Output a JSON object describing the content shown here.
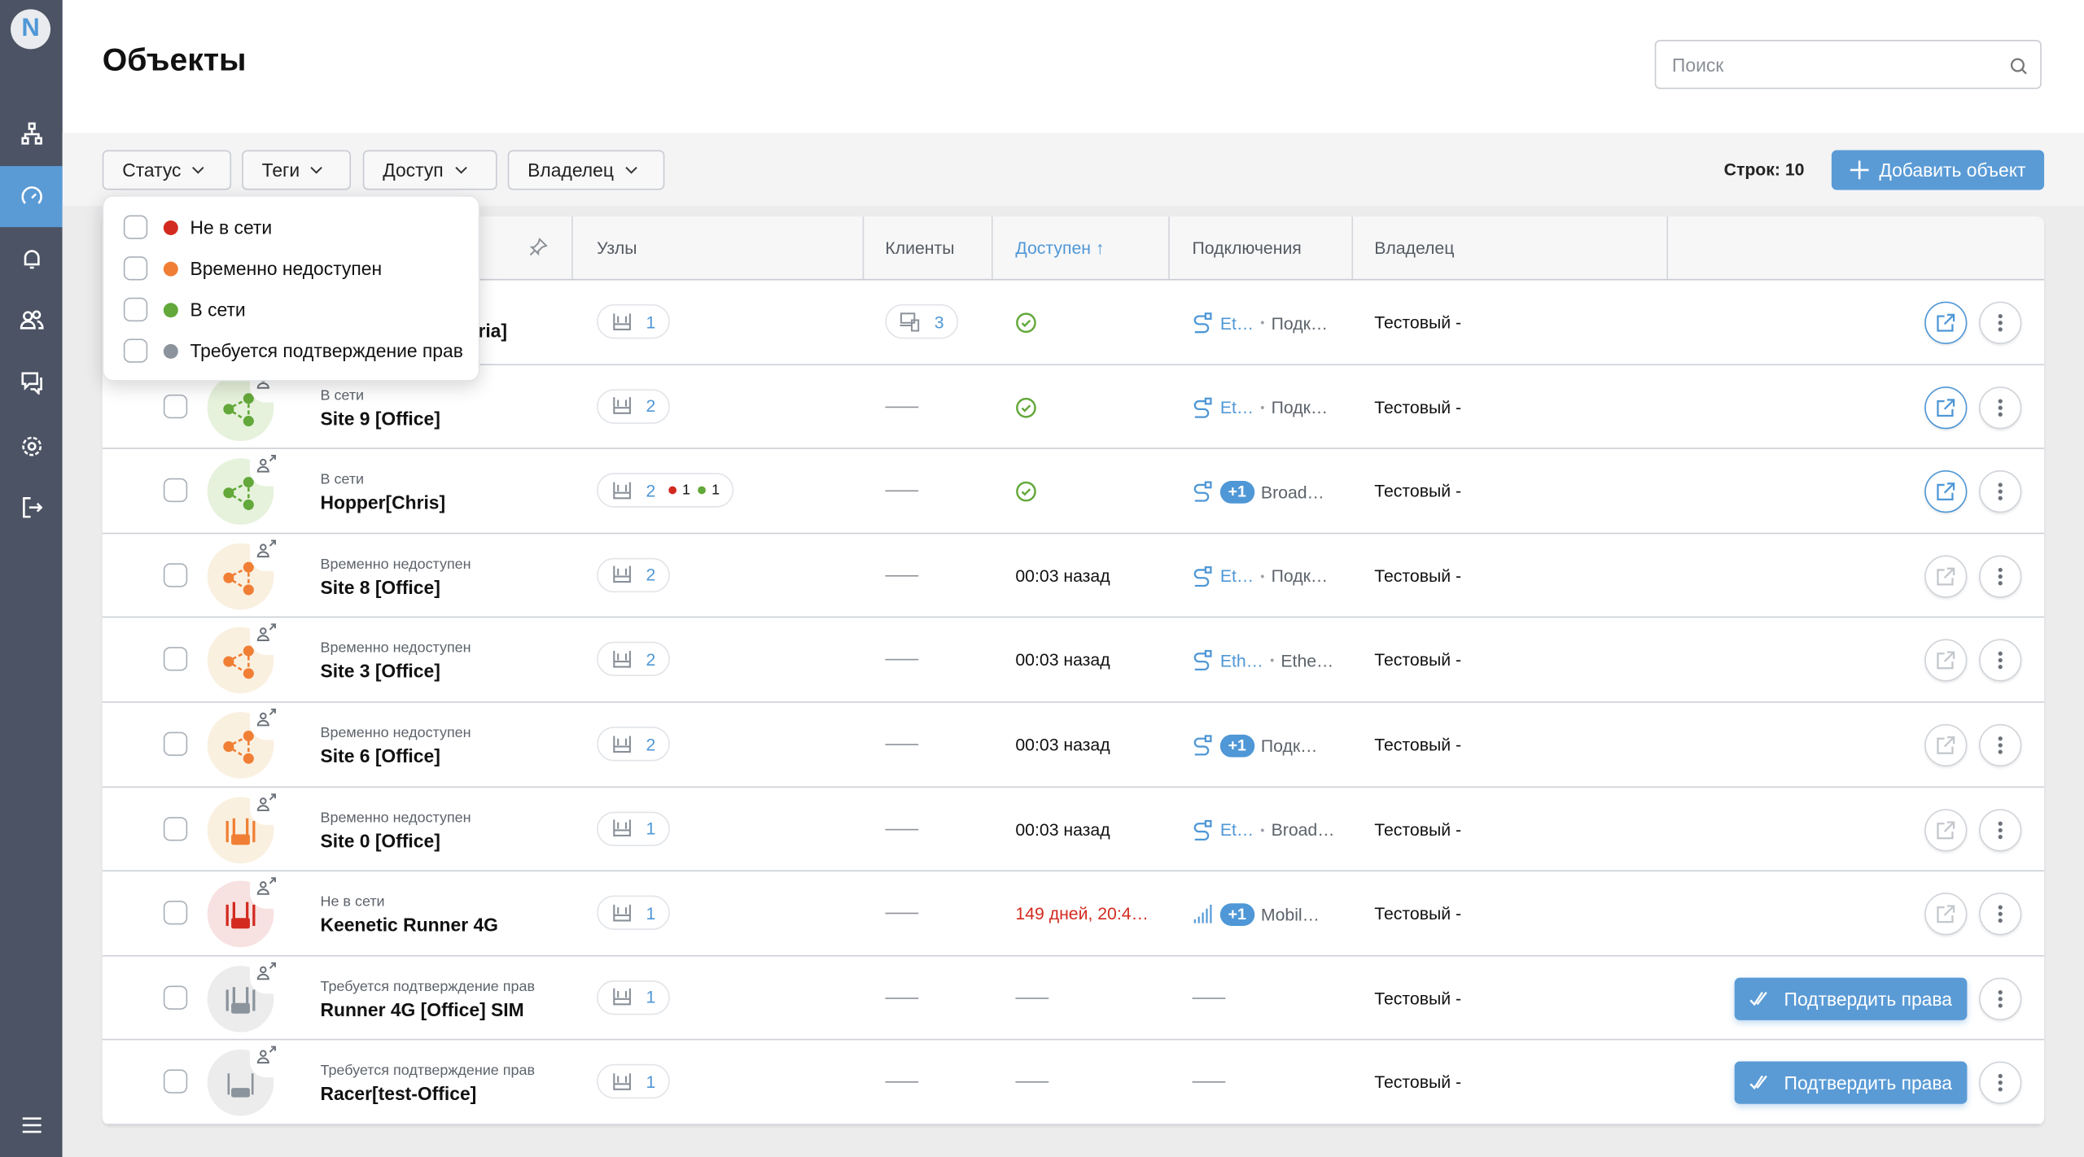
{
  "app": {
    "logo": "N",
    "title": "Объекты"
  },
  "sidebar": {
    "items": [
      {
        "icon": "network-topology-icon",
        "active": false
      },
      {
        "icon": "dashboard-gauge-icon",
        "active": true
      },
      {
        "icon": "bell-icon",
        "active": false
      },
      {
        "icon": "users-icon",
        "active": false
      },
      {
        "icon": "chat-icon",
        "active": false
      },
      {
        "icon": "gear-icon",
        "active": false
      },
      {
        "icon": "logout-icon",
        "active": false
      }
    ],
    "menu_icon": "hamburger-icon"
  },
  "search": {
    "placeholder": "Поиск",
    "value": ""
  },
  "filters": [
    {
      "label": "Статус"
    },
    {
      "label": "Теги"
    },
    {
      "label": "Доступ"
    },
    {
      "label": "Владелец"
    }
  ],
  "rows_count": "Строк: 10",
  "add_button": "Добавить объект",
  "status_dropdown": {
    "options": [
      {
        "label": "Не в сети",
        "color": "#d32a1f",
        "checked": false
      },
      {
        "label": "Временно недоступен",
        "color": "#f07f35",
        "checked": false
      },
      {
        "label": "В сети",
        "color": "#63a83a",
        "checked": false
      },
      {
        "label": "Требуется подтверждение прав",
        "color": "#8b939c",
        "checked": false
      }
    ]
  },
  "table": {
    "columns": {
      "nodes": "Узлы",
      "clients": "Клиенты",
      "available": "Доступен",
      "available_sort": "↑",
      "connections": "Подключения",
      "owner": "Владелец"
    },
    "rows": [
      {
        "status": "",
        "name": "aria]",
        "kind": "network",
        "color": "online",
        "nodes": "1",
        "clients": "3",
        "available_icon": "check",
        "available": "",
        "conn_icon": "ethernet",
        "conn1": "Et…",
        "plus": "",
        "conn2": "Подк…",
        "owner": "Тестовый -",
        "action": "open-active"
      },
      {
        "status": "В сети",
        "name": "Site 9 [Office]",
        "kind": "network",
        "color": "online",
        "nodes": "2",
        "clients": "",
        "available_icon": "check",
        "available": "",
        "conn_icon": "ethernet",
        "conn1": "Et…",
        "plus": "",
        "conn2": "Подк…",
        "owner": "Тестовый -",
        "action": "open-active"
      },
      {
        "status": "В сети",
        "name": "Hopper[Chris]",
        "kind": "network",
        "color": "online",
        "nodes": "2",
        "nodes_red": "1",
        "nodes_green": "1",
        "clients": "",
        "available_icon": "check",
        "available": "",
        "conn_icon": "ethernet",
        "conn1": "",
        "plus": "+1",
        "conn2": "Broad…",
        "owner": "Тестовый -",
        "action": "open-active"
      },
      {
        "status": "Временно недоступен",
        "name": "Site 8 [Office]",
        "kind": "network",
        "color": "warn",
        "nodes": "2",
        "clients": "",
        "available": "00:03 назад",
        "conn_icon": "ethernet",
        "conn1": "Et…",
        "plus": "",
        "conn2": "Подк…",
        "owner": "Тестовый -",
        "action": "open-inactive"
      },
      {
        "status": "Временно недоступен",
        "name": "Site 3 [Office]",
        "kind": "network",
        "color": "warn",
        "nodes": "2",
        "clients": "",
        "available": "00:03 назад",
        "conn_icon": "ethernet",
        "conn1": "Eth…",
        "plus": "",
        "conn2": "Ethe…",
        "owner": "Тестовый -",
        "action": "open-inactive"
      },
      {
        "status": "Временно недоступен",
        "name": "Site 6 [Office]",
        "kind": "network",
        "color": "warn",
        "nodes": "2",
        "clients": "",
        "available": "00:03 назад",
        "conn_icon": "ethernet",
        "conn1": "",
        "plus": "+1",
        "conn2": "Подк…",
        "owner": "Тестовый -",
        "action": "open-inactive"
      },
      {
        "status": "Временно недоступен",
        "name": "Site 0 [Office]",
        "kind": "router",
        "color": "warn",
        "nodes": "1",
        "clients": "",
        "available": "00:03 назад",
        "conn_icon": "ethernet",
        "conn1": "Et…",
        "plus": "",
        "conn2": "Broad…",
        "owner": "Тестовый -",
        "action": "open-inactive"
      },
      {
        "status": "Не в сети",
        "name": "Keenetic Runner 4G",
        "kind": "router",
        "color": "offline",
        "nodes": "1",
        "clients": "",
        "available": "149 дней, 20:4…",
        "available_red": true,
        "conn_icon": "mobile",
        "conn1": "",
        "plus": "+1",
        "conn2": "Mobil…",
        "owner": "Тестовый -",
        "action": "open-inactive"
      },
      {
        "status": "Требуется подтверждение прав",
        "name": "Runner 4G [Office] SIM",
        "kind": "router",
        "color": "pending",
        "nodes": "1",
        "clients": "",
        "available": "",
        "conn_icon": "",
        "owner": "Тестовый -",
        "action": "confirm"
      },
      {
        "status": "Требуется подтверждение прав",
        "name": "Racer[test-Office]",
        "kind": "router-small",
        "color": "pending",
        "nodes": "1",
        "clients": "",
        "available": "",
        "conn_icon": "",
        "owner": "Тестовый -",
        "action": "confirm"
      }
    ],
    "confirm_label": "Подтвердить права"
  },
  "colors": {
    "accent": "#5a9bd6",
    "sidebar": "#4b5364",
    "online": "#63a83a",
    "warn": "#f07f35",
    "offline": "#d32a1f",
    "pending": "#8b939c"
  }
}
